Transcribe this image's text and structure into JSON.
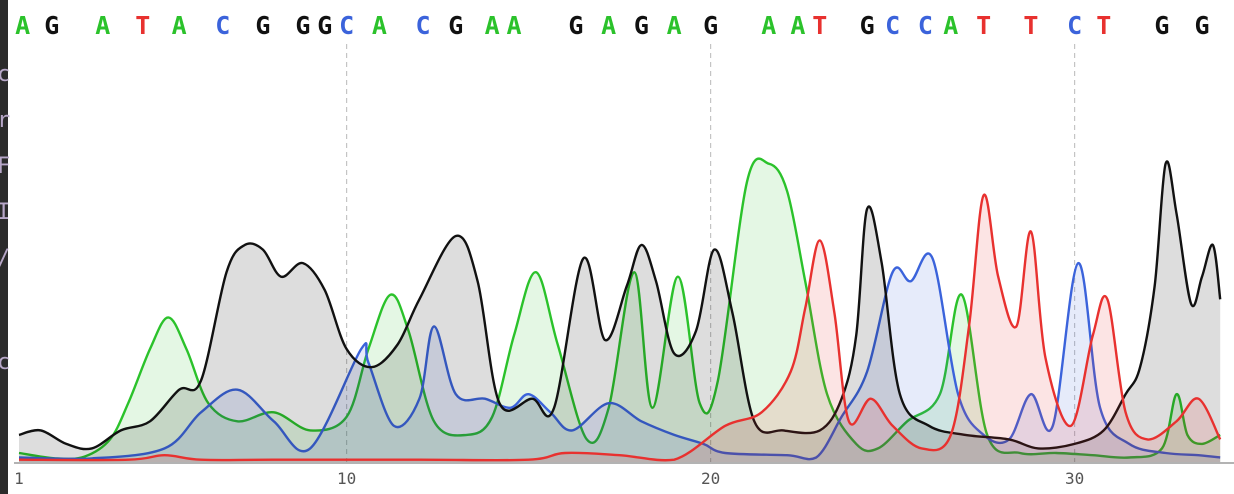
{
  "viewer": {
    "left_edge_glyphs": [
      "c",
      "r",
      "F",
      "I",
      "/",
      "c"
    ]
  },
  "chart_data": {
    "type": "line",
    "title": "",
    "xlabel": "",
    "ylabel": "",
    "x_axis": {
      "ticks": [
        1,
        10,
        20,
        30
      ],
      "range": [
        1,
        34
      ]
    },
    "y_axis": {
      "range": [
        0,
        1000
      ],
      "visible": false
    },
    "grid": {
      "vertical_lines_at": [
        10,
        20,
        30
      ],
      "style": "dashed"
    },
    "legend": "none",
    "colors": {
      "A": "#2bc22b",
      "C": "#3b63db",
      "G": "#111111",
      "T": "#e8312f"
    },
    "base_calls": [
      {
        "base": "A",
        "pos": 1.1
      },
      {
        "base": "G",
        "pos": 1.9
      },
      {
        "base": "A",
        "pos": 3.3
      },
      {
        "base": "T",
        "pos": 4.4
      },
      {
        "base": "A",
        "pos": 5.4
      },
      {
        "base": "C",
        "pos": 6.6
      },
      {
        "base": "G",
        "pos": 7.7
      },
      {
        "base": "G",
        "pos": 8.8
      },
      {
        "base": "G",
        "pos": 9.4
      },
      {
        "base": "C",
        "pos": 10.0
      },
      {
        "base": "A",
        "pos": 10.9
      },
      {
        "base": "C",
        "pos": 12.1
      },
      {
        "base": "G",
        "pos": 13.0
      },
      {
        "base": "A",
        "pos": 14.0
      },
      {
        "base": "A",
        "pos": 14.6
      },
      {
        "base": "G",
        "pos": 16.3
      },
      {
        "base": "A",
        "pos": 17.2
      },
      {
        "base": "G",
        "pos": 18.1
      },
      {
        "base": "A",
        "pos": 19.0
      },
      {
        "base": "G",
        "pos": 20.0
      },
      {
        "base": "A",
        "pos": 21.6
      },
      {
        "base": "A",
        "pos": 22.4
      },
      {
        "base": "T",
        "pos": 23.0
      },
      {
        "base": "G",
        "pos": 24.3
      },
      {
        "base": "C",
        "pos": 25.0
      },
      {
        "base": "C",
        "pos": 25.9
      },
      {
        "base": "A",
        "pos": 26.6
      },
      {
        "base": "T",
        "pos": 27.5
      },
      {
        "base": "T",
        "pos": 28.8
      },
      {
        "base": "C",
        "pos": 30.0
      },
      {
        "base": "T",
        "pos": 30.8
      },
      {
        "base": "G",
        "pos": 32.4
      },
      {
        "base": "G",
        "pos": 33.5
      }
    ],
    "series": [
      {
        "base": "A",
        "points": [
          [
            1,
            20
          ],
          [
            2,
            8
          ],
          [
            2.8,
            12
          ],
          [
            3.5,
            50
          ],
          [
            4,
            130
          ],
          [
            4.6,
            250
          ],
          [
            5.1,
            320
          ],
          [
            5.6,
            250
          ],
          [
            6.2,
            130
          ],
          [
            7,
            90
          ],
          [
            8,
            110
          ],
          [
            9,
            70
          ],
          [
            10,
            100
          ],
          [
            10.6,
            250
          ],
          [
            11.2,
            370
          ],
          [
            11.7,
            290
          ],
          [
            12.4,
            90
          ],
          [
            13.3,
            60
          ],
          [
            14,
            100
          ],
          [
            14.6,
            280
          ],
          [
            15.2,
            420
          ],
          [
            15.8,
            260
          ],
          [
            16.6,
            50
          ],
          [
            17.2,
            120
          ],
          [
            17.9,
            420
          ],
          [
            18.4,
            120
          ],
          [
            19.1,
            410
          ],
          [
            19.7,
            130
          ],
          [
            20.2,
            180
          ],
          [
            21.0,
            620
          ],
          [
            21.6,
            660
          ],
          [
            22.1,
            600
          ],
          [
            22.6,
            400
          ],
          [
            23.2,
            150
          ],
          [
            24.0,
            40
          ],
          [
            24.6,
            30
          ],
          [
            25.4,
            90
          ],
          [
            26.3,
            150
          ],
          [
            26.9,
            370
          ],
          [
            27.6,
            60
          ],
          [
            28.5,
            20
          ],
          [
            29.5,
            20
          ],
          [
            30.5,
            15
          ],
          [
            31.5,
            10
          ],
          [
            32.4,
            30
          ],
          [
            32.8,
            150
          ],
          [
            33.1,
            60
          ],
          [
            33.5,
            40
          ],
          [
            34,
            60
          ]
        ]
      },
      {
        "base": "C",
        "points": [
          [
            1,
            10
          ],
          [
            3,
            8
          ],
          [
            5,
            30
          ],
          [
            6,
            110
          ],
          [
            7,
            160
          ],
          [
            8,
            90
          ],
          [
            9,
            30
          ],
          [
            10.4,
            250
          ],
          [
            10.6,
            220
          ],
          [
            11.3,
            80
          ],
          [
            12.0,
            140
          ],
          [
            12.4,
            300
          ],
          [
            13.0,
            150
          ],
          [
            13.8,
            140
          ],
          [
            14.5,
            120
          ],
          [
            15.0,
            150
          ],
          [
            15.6,
            110
          ],
          [
            16.2,
            70
          ],
          [
            17.2,
            130
          ],
          [
            18.1,
            90
          ],
          [
            19.0,
            60
          ],
          [
            19.8,
            40
          ],
          [
            20.4,
            20
          ],
          [
            22.1,
            15
          ],
          [
            22.9,
            10
          ],
          [
            23.6,
            100
          ],
          [
            24.3,
            200
          ],
          [
            25.0,
            420
          ],
          [
            25.5,
            400
          ],
          [
            26.1,
            450
          ],
          [
            26.8,
            150
          ],
          [
            27.5,
            60
          ],
          [
            28.2,
            50
          ],
          [
            28.8,
            150
          ],
          [
            29.4,
            80
          ],
          [
            30.1,
            440
          ],
          [
            30.7,
            120
          ],
          [
            31.5,
            40
          ],
          [
            32.5,
            20
          ],
          [
            33.4,
            15
          ],
          [
            34,
            10
          ]
        ]
      },
      {
        "base": "G",
        "points": [
          [
            1,
            60
          ],
          [
            1.6,
            70
          ],
          [
            2.3,
            40
          ],
          [
            3,
            30
          ],
          [
            3.8,
            70
          ],
          [
            4.6,
            90
          ],
          [
            5.4,
            160
          ],
          [
            6.0,
            180
          ],
          [
            6.7,
            420
          ],
          [
            7.2,
            480
          ],
          [
            7.7,
            470
          ],
          [
            8.2,
            410
          ],
          [
            8.8,
            440
          ],
          [
            9.4,
            380
          ],
          [
            10.0,
            250
          ],
          [
            10.7,
            210
          ],
          [
            11.4,
            260
          ],
          [
            12.0,
            360
          ],
          [
            13.0,
            500
          ],
          [
            13.6,
            400
          ],
          [
            14.2,
            130
          ],
          [
            15.1,
            140
          ],
          [
            15.7,
            120
          ],
          [
            16.5,
            450
          ],
          [
            17.1,
            270
          ],
          [
            17.7,
            390
          ],
          [
            18.1,
            480
          ],
          [
            18.5,
            400
          ],
          [
            19.0,
            240
          ],
          [
            19.6,
            290
          ],
          [
            20.1,
            470
          ],
          [
            20.6,
            330
          ],
          [
            21.2,
            90
          ],
          [
            22.0,
            70
          ],
          [
            23.0,
            70
          ],
          [
            23.6,
            140
          ],
          [
            24.0,
            280
          ],
          [
            24.3,
            560
          ],
          [
            24.7,
            440
          ],
          [
            25.2,
            150
          ],
          [
            26.0,
            80
          ],
          [
            27.0,
            60
          ],
          [
            28.2,
            50
          ],
          [
            29.0,
            30
          ],
          [
            30.0,
            40
          ],
          [
            30.8,
            70
          ],
          [
            31.4,
            150
          ],
          [
            31.8,
            210
          ],
          [
            32.2,
            390
          ],
          [
            32.5,
            660
          ],
          [
            32.8,
            550
          ],
          [
            33.2,
            350
          ],
          [
            33.5,
            410
          ],
          [
            33.8,
            480
          ],
          [
            34,
            360
          ]
        ]
      },
      {
        "base": "T",
        "points": [
          [
            1,
            5
          ],
          [
            4,
            5
          ],
          [
            5,
            15
          ],
          [
            6,
            5
          ],
          [
            8,
            5
          ],
          [
            12,
            5
          ],
          [
            15,
            5
          ],
          [
            16,
            20
          ],
          [
            17.5,
            15
          ],
          [
            19,
            5
          ],
          [
            20.4,
            80
          ],
          [
            21.4,
            110
          ],
          [
            22.2,
            200
          ],
          [
            22.6,
            340
          ],
          [
            23.0,
            490
          ],
          [
            23.4,
            330
          ],
          [
            23.8,
            90
          ],
          [
            24.4,
            140
          ],
          [
            25.0,
            80
          ],
          [
            25.8,
            30
          ],
          [
            26.6,
            60
          ],
          [
            27.1,
            300
          ],
          [
            27.5,
            590
          ],
          [
            27.9,
            410
          ],
          [
            28.4,
            300
          ],
          [
            28.8,
            510
          ],
          [
            29.2,
            230
          ],
          [
            29.9,
            80
          ],
          [
            30.5,
            280
          ],
          [
            30.9,
            360
          ],
          [
            31.4,
            110
          ],
          [
            32.0,
            50
          ],
          [
            32.8,
            90
          ],
          [
            33.4,
            140
          ],
          [
            34,
            50
          ]
        ]
      }
    ]
  }
}
